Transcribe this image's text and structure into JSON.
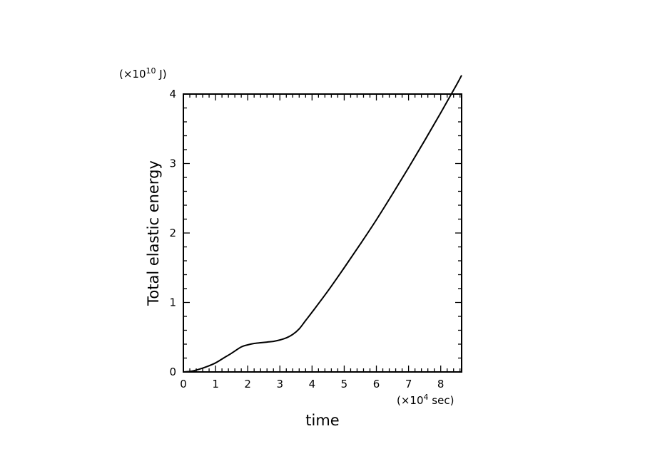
{
  "chart_data": {
    "type": "line",
    "xlabel": "time",
    "ylabel": "Total elastic energy",
    "x_unit": {
      "prefix": "(×10",
      "exp": "4",
      "suffix": " sec)"
    },
    "y_unit": {
      "prefix": "(×10",
      "exp": "10",
      "suffix": " J)"
    },
    "xlim": [
      0,
      8.65
    ],
    "ylim": [
      0,
      4
    ],
    "xticks": [
      "0",
      "1",
      "2",
      "3",
      "4",
      "5",
      "6",
      "7",
      "8"
    ],
    "yticks": [
      "0",
      "1",
      "2",
      "3",
      "4"
    ],
    "grid": false,
    "series": [
      {
        "x": [
          0,
          0.25,
          0.5,
          0.75,
          1.0,
          1.25,
          1.5,
          1.8,
          2.0,
          2.2,
          2.4,
          2.6,
          2.8,
          3.0,
          3.2,
          3.4,
          3.6,
          3.8,
          4.0,
          4.5,
          5.0,
          5.5,
          6.0,
          6.5,
          7.0,
          7.5,
          8.0,
          8.5,
          8.65
        ],
        "y": [
          0,
          0.01,
          0.04,
          0.08,
          0.13,
          0.2,
          0.27,
          0.36,
          0.39,
          0.41,
          0.42,
          0.43,
          0.44,
          0.46,
          0.49,
          0.54,
          0.62,
          0.74,
          0.86,
          1.17,
          1.5,
          1.84,
          2.19,
          2.56,
          2.94,
          3.33,
          3.73,
          4.14,
          4.27
        ]
      }
    ]
  }
}
